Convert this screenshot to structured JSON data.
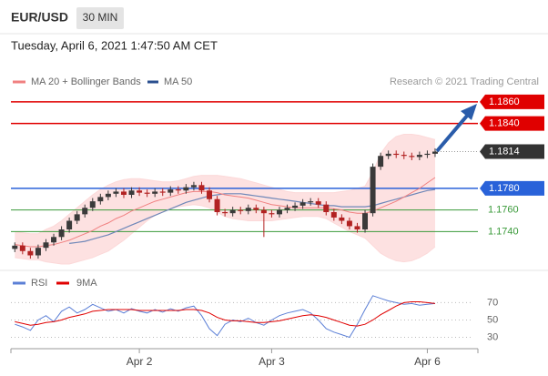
{
  "header": {
    "symbol": "EUR/USD",
    "interval": "30 MIN",
    "timestamp": "Tuesday, April 6, 2021 1:47:50 AM CET",
    "credit": "Research © 2021 Trading Central"
  },
  "chart_data": [
    {
      "type": "candlestick",
      "ylim": [
        1.171,
        1.187
      ],
      "up_color": "#3a3a3a",
      "down_color": "#b22222",
      "open": [
        1.1724,
        1.1727,
        1.1722,
        1.1718,
        1.1725,
        1.173,
        1.1735,
        1.1742,
        1.175,
        1.1756,
        1.1762,
        1.1768,
        1.1772,
        1.1775,
        1.1777,
        1.1774,
        1.1778,
        1.1776,
        1.1775,
        1.1777,
        1.1776,
        1.1779,
        1.1778,
        1.1781,
        1.1783,
        1.1778,
        1.177,
        1.1758,
        1.1757,
        1.176,
        1.1759,
        1.1762,
        1.176,
        1.1757,
        1.1756,
        1.176,
        1.1762,
        1.1764,
        1.1767,
        1.1768,
        1.1765,
        1.1758,
        1.1753,
        1.175,
        1.1745,
        1.1742,
        1.1757,
        1.18,
        1.181,
        1.1812,
        1.1811,
        1.181,
        1.1809,
        1.1811,
        1.1812,
        null,
        null,
        null,
        null,
        null
      ],
      "high": [
        1.173,
        1.173,
        1.1725,
        1.1728,
        1.1733,
        1.1738,
        1.1745,
        1.1753,
        1.1759,
        1.1765,
        1.1771,
        1.1775,
        1.1778,
        1.178,
        1.178,
        1.1781,
        1.1781,
        1.1779,
        1.178,
        1.178,
        1.1782,
        1.1782,
        1.1784,
        1.1786,
        1.1786,
        1.1781,
        1.1773,
        1.1761,
        1.1763,
        1.1763,
        1.1765,
        1.1765,
        1.1763,
        1.176,
        1.1763,
        1.1765,
        1.1767,
        1.177,
        1.1771,
        1.1771,
        1.1768,
        1.1761,
        1.1756,
        1.1753,
        1.1748,
        1.176,
        1.1803,
        1.1813,
        1.1815,
        1.1815,
        1.1814,
        1.1813,
        1.1814,
        1.1815,
        1.1817,
        null,
        null,
        null,
        null,
        null
      ],
      "low": [
        1.1721,
        1.1719,
        1.1715,
        1.1715,
        1.1722,
        1.1727,
        1.1732,
        1.1739,
        1.1747,
        1.1753,
        1.1759,
        1.1765,
        1.1769,
        1.1772,
        1.1771,
        1.1771,
        1.1773,
        1.1772,
        1.1772,
        1.1773,
        1.1773,
        1.1775,
        1.1775,
        1.1778,
        1.1775,
        1.1767,
        1.1755,
        1.1754,
        1.1754,
        1.1756,
        1.1756,
        1.1757,
        1.1735,
        1.1753,
        1.1753,
        1.1757,
        1.1759,
        1.1761,
        1.1764,
        1.1762,
        1.1755,
        1.175,
        1.1747,
        1.1742,
        1.1739,
        1.1739,
        1.1754,
        1.1797,
        1.1807,
        1.1808,
        1.1807,
        1.1806,
        1.1806,
        1.1808,
        1.1809,
        null,
        null,
        null,
        null,
        null
      ],
      "close": [
        1.1727,
        1.1722,
        1.1718,
        1.1725,
        1.173,
        1.1735,
        1.1742,
        1.175,
        1.1756,
        1.1762,
        1.1768,
        1.1772,
        1.1775,
        1.1777,
        1.1774,
        1.1778,
        1.1776,
        1.1775,
        1.1777,
        1.1776,
        1.1779,
        1.1778,
        1.1781,
        1.1783,
        1.1778,
        1.177,
        1.1758,
        1.1757,
        1.176,
        1.1759,
        1.1762,
        1.176,
        1.1757,
        1.1756,
        1.176,
        1.1762,
        1.1764,
        1.1767,
        1.1768,
        1.1765,
        1.1758,
        1.1753,
        1.175,
        1.1745,
        1.1742,
        1.1757,
        1.18,
        1.181,
        1.1812,
        1.1811,
        1.181,
        1.1809,
        1.1811,
        1.1812,
        1.1814,
        null,
        null,
        null,
        null,
        null
      ],
      "series": [
        {
          "name": "MA 20 + Bollinger Bands",
          "color": "#f08080",
          "band_color": "#fcd9d9",
          "values": [
            1.1728,
            1.1727,
            1.1726,
            1.1726,
            1.1727,
            1.1728,
            1.173,
            1.1732,
            1.1735,
            1.1738,
            1.1741,
            1.1745,
            1.1748,
            1.1752,
            1.1755,
            1.1759,
            1.1762,
            1.1765,
            1.1768,
            1.177,
            1.1772,
            1.1774,
            1.1776,
            1.1777,
            1.1777,
            1.1777,
            1.1776,
            1.1774,
            1.1773,
            1.1772,
            1.1771,
            1.1769,
            1.1767,
            1.1765,
            1.1764,
            1.1763,
            1.1762,
            1.1762,
            1.1762,
            1.1762,
            1.1762,
            1.1761,
            1.176,
            1.1758,
            1.1757,
            1.1757,
            1.1759,
            1.1762,
            1.1765,
            1.1768,
            1.1772,
            1.1776,
            1.178,
            1.1785,
            1.179,
            null,
            null,
            null,
            null,
            null
          ],
          "upper": [
            1.174,
            1.1739,
            1.1738,
            1.1738,
            1.1742,
            1.1745,
            1.175,
            1.1756,
            1.1762,
            1.1768,
            1.1774,
            1.1779,
            1.1783,
            1.1786,
            1.1788,
            1.1789,
            1.1789,
            1.1788,
            1.1787,
            1.1786,
            1.1786,
            1.1787,
            1.1789,
            1.1791,
            1.1792,
            1.1792,
            1.1792,
            1.1791,
            1.179,
            1.1789,
            1.1787,
            1.1785,
            1.1783,
            1.1781,
            1.1779,
            1.1777,
            1.1776,
            1.1776,
            1.1776,
            1.1776,
            1.1776,
            1.1776,
            1.1777,
            1.1778,
            1.178,
            1.1782,
            1.1795,
            1.1812,
            1.1822,
            1.1828,
            1.183,
            1.183,
            1.1829,
            1.1827,
            1.1825,
            null,
            null,
            null,
            null,
            null
          ],
          "lower": [
            1.1716,
            1.1715,
            1.1714,
            1.1714,
            1.1712,
            1.1711,
            1.171,
            1.171,
            1.1712,
            1.1714,
            1.1716,
            1.1719,
            1.1722,
            1.1727,
            1.1732,
            1.1738,
            1.1744,
            1.175,
            1.1755,
            1.1758,
            1.1761,
            1.1763,
            1.1764,
            1.1765,
            1.1764,
            1.1762,
            1.1758,
            1.1754,
            1.1752,
            1.1751,
            1.175,
            1.175,
            1.175,
            1.175,
            1.1751,
            1.1752,
            1.1753,
            1.1754,
            1.1754,
            1.1754,
            1.1752,
            1.1748,
            1.1744,
            1.174,
            1.1737,
            1.1734,
            1.1727,
            1.172,
            1.1716,
            1.1713,
            1.1712,
            1.1713,
            1.1716,
            1.172,
            1.1726,
            null,
            null,
            null,
            null,
            null
          ]
        },
        {
          "name": "MA 50",
          "color": "#6f87b8",
          "legend_color": "#2a4f8f",
          "values": [
            null,
            null,
            null,
            null,
            null,
            null,
            null,
            1.1729,
            1.173,
            1.1731,
            1.1733,
            1.1735,
            1.1737,
            1.174,
            1.1743,
            1.1746,
            1.1749,
            1.1752,
            1.1755,
            1.1758,
            1.1761,
            1.1764,
            1.1767,
            1.1769,
            1.1771,
            1.1773,
            1.1774,
            1.1775,
            1.1775,
            1.1775,
            1.1774,
            1.1773,
            1.1772,
            1.1771,
            1.177,
            1.1769,
            1.1768,
            1.1767,
            1.1766,
            1.1765,
            1.1764,
            1.1764,
            1.1763,
            1.1763,
            1.1763,
            1.1763,
            1.1764,
            1.1766,
            1.1768,
            1.177,
            1.1772,
            1.1774,
            1.1776,
            1.1778,
            1.1779,
            null,
            null,
            null,
            null,
            null
          ]
        }
      ],
      "levels": [
        {
          "value": 1.186,
          "label": "1.1860",
          "color": "#e00000",
          "style": "line-badge"
        },
        {
          "value": 1.184,
          "label": "1.1840",
          "color": "#e00000",
          "style": "line-badge"
        },
        {
          "value": 1.1814,
          "label": "1.1814",
          "color": "#333333",
          "style": "dotted-badge"
        },
        {
          "value": 1.178,
          "label": "1.1780",
          "color": "#2962d9",
          "style": "line-badge"
        },
        {
          "value": 1.176,
          "label": "1.1760",
          "color": "#3a9a3a",
          "style": "line-text"
        },
        {
          "value": 1.174,
          "label": "1.1740",
          "color": "#3a9a3a",
          "style": "line-text"
        }
      ]
    },
    {
      "type": "line",
      "ylim": [
        20,
        82
      ],
      "yticks": [
        70,
        50,
        30
      ],
      "grid": true,
      "categories": [
        null,
        null,
        null,
        null,
        null,
        null,
        null,
        null,
        null,
        null,
        null,
        null,
        null,
        null,
        null,
        null,
        "Apr 2",
        null,
        null,
        null,
        null,
        null,
        null,
        null,
        null,
        null,
        null,
        null,
        null,
        null,
        null,
        null,
        null,
        "Apr 3",
        null,
        null,
        null,
        null,
        null,
        null,
        null,
        null,
        null,
        null,
        null,
        null,
        null,
        null,
        null,
        null,
        null,
        null,
        null,
        "Apr 6",
        null,
        null,
        null,
        null,
        null,
        null
      ],
      "series": [
        {
          "name": "RSI",
          "color": "#5b7fd6",
          "values": [
            45,
            42,
            38,
            50,
            55,
            48,
            60,
            65,
            58,
            62,
            68,
            64,
            60,
            62,
            58,
            63,
            60,
            58,
            62,
            59,
            63,
            60,
            64,
            66,
            55,
            40,
            32,
            45,
            50,
            48,
            52,
            47,
            44,
            50,
            55,
            58,
            60,
            62,
            58,
            50,
            40,
            36,
            33,
            30,
            45,
            62,
            78,
            75,
            72,
            70,
            68,
            69,
            67,
            68,
            69,
            null,
            null,
            null,
            null,
            null
          ]
        },
        {
          "name": "9MA",
          "color": "#e00000",
          "values": [
            48,
            46,
            44,
            45,
            47,
            48,
            50,
            53,
            55,
            57,
            60,
            61,
            62,
            62,
            62,
            62,
            61,
            61,
            61,
            61,
            61,
            61,
            62,
            62,
            61,
            58,
            53,
            50,
            49,
            49,
            48,
            47,
            47,
            48,
            49,
            51,
            53,
            55,
            56,
            55,
            53,
            50,
            47,
            44,
            43,
            45,
            50,
            56,
            61,
            66,
            70,
            71,
            71,
            70,
            69,
            null,
            null,
            null,
            null,
            null
          ]
        }
      ]
    }
  ]
}
